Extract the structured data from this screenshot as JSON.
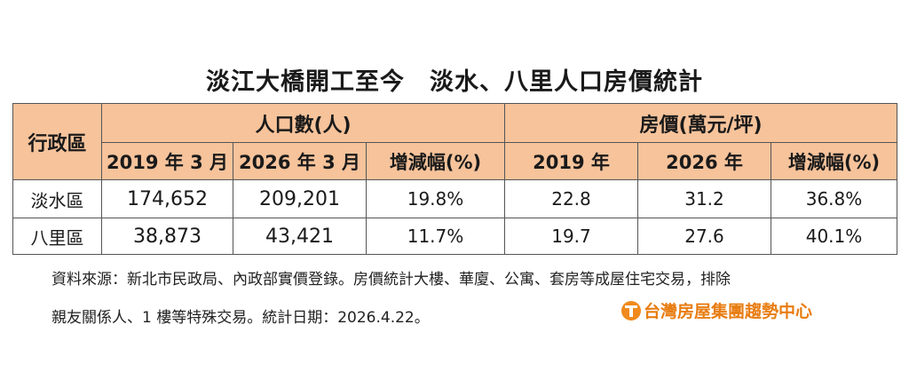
{
  "title": "淡江大橋開工至今　淡水、八里人口房價統計",
  "table": {
    "district_header": "行政區",
    "population_header": "人口數(人)",
    "price_header": "房價(萬元/坪)",
    "sub_headers": [
      "2019 年 3 月",
      "2026 年 3 月",
      "增減幅(%)",
      "2019 年",
      "2026 年",
      "增減幅(%)"
    ],
    "rows": [
      {
        "district": "淡水區",
        "pop_2019": "174,652",
        "pop_2026": "209,201",
        "pop_change": "19.8%",
        "price_2019": "22.8",
        "price_2026": "31.2",
        "price_change": "36.8%"
      },
      {
        "district": "八里區",
        "pop_2019": "38,873",
        "pop_2026": "43,421",
        "pop_change": "11.7%",
        "price_2019": "19.7",
        "price_2026": "27.6",
        "price_change": "40.1%"
      }
    ]
  },
  "notes": {
    "line1": "資料來源：新北市民政局、內政部實價登錄。房價統計大樓、華廈、公寓、套房等成屋住宅交易，排除",
    "line2": "親友關係人、1 樓等特殊交易。統計日期：2026.4.22。"
  },
  "brand": {
    "name": "台灣房屋集團趨勢中心",
    "icon": "taiwan-realty-logo-icon",
    "color": "#e87d12"
  },
  "colors": {
    "header_fill": "#f6c39b",
    "border": "#555555"
  }
}
